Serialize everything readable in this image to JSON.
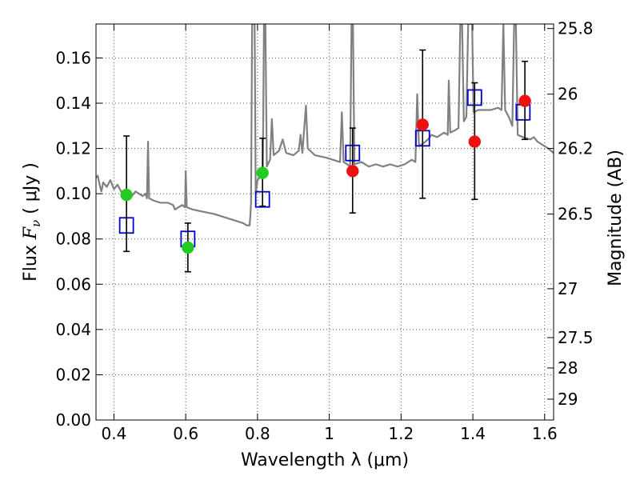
{
  "chart_data": {
    "type": "scatter",
    "xlabel": "Wavelength  λ (μm)",
    "ylabel": {
      "prefix": "Flux  ",
      "symbol": "F",
      "subscript": "ν",
      "suffix": "  ( μJy )"
    },
    "y2label": "Magnitude (AB)",
    "xlim": [
      0.35,
      1.625
    ],
    "ylim": [
      0.0,
      0.175
    ],
    "grid": true,
    "x_ticks": [
      0.4,
      0.6,
      0.8,
      1.0,
      1.2,
      1.4,
      1.6
    ],
    "x_tick_labels": [
      "0.4",
      "0.6",
      "0.8",
      "1",
      "1.2",
      "1.4",
      "1.6"
    ],
    "y_ticks": [
      0.0,
      0.02,
      0.04,
      0.06,
      0.08,
      0.1,
      0.12,
      0.14,
      0.16
    ],
    "y_tick_labels": [
      "0.00",
      "0.02",
      "0.04",
      "0.06",
      "0.08",
      "0.10",
      "0.12",
      "0.14",
      "0.16"
    ],
    "y2_ticks": [
      {
        "label": "25.8",
        "flux": 0.173
      },
      {
        "label": "26",
        "flux": 0.144
      },
      {
        "label": "26.2",
        "flux": 0.12
      },
      {
        "label": "26.5",
        "flux": 0.091
      },
      {
        "label": "27",
        "flux": 0.058
      },
      {
        "label": "27.5",
        "flux": 0.0364
      },
      {
        "label": "28",
        "flux": 0.023
      },
      {
        "label": "29",
        "flux": 0.0092
      }
    ],
    "colors": {
      "sed": "#808080",
      "green": "#22cc22",
      "red": "#ee1111",
      "model": "#0000cc",
      "errorbar": "#000000",
      "grid": "#555555"
    },
    "series": [
      {
        "kind": "observed_green",
        "points": [
          {
            "x": 0.435,
            "y": 0.0995,
            "yerr_low": 0.0745,
            "yerr_high": 0.1255
          },
          {
            "x": 0.606,
            "y": 0.0762,
            "yerr_low": 0.0655,
            "yerr_high": 0.087
          },
          {
            "x": 0.814,
            "y": 0.1092,
            "yerr_low": 0.0945,
            "yerr_high": 0.1245
          }
        ]
      },
      {
        "kind": "observed_red",
        "points": [
          {
            "x": 1.065,
            "y": 0.11,
            "yerr_low": 0.0915,
            "yerr_high": 0.129
          },
          {
            "x": 1.26,
            "y": 0.1305,
            "yerr_low": 0.098,
            "yerr_high": 0.1635
          },
          {
            "x": 1.405,
            "y": 0.123,
            "yerr_low": 0.0975,
            "yerr_high": 0.149
          },
          {
            "x": 1.545,
            "y": 0.141,
            "yerr_low": 0.124,
            "yerr_high": 0.1585
          }
        ]
      },
      {
        "kind": "model_squares",
        "points": [
          {
            "x": 0.435,
            "y": 0.086
          },
          {
            "x": 0.606,
            "y": 0.08
          },
          {
            "x": 0.814,
            "y": 0.0975
          },
          {
            "x": 1.065,
            "y": 0.118
          },
          {
            "x": 1.26,
            "y": 0.1245
          },
          {
            "x": 1.405,
            "y": 0.1425
          },
          {
            "x": 1.54,
            "y": 0.136
          }
        ]
      }
    ],
    "sed_curve": [
      [
        0.35,
        0.107
      ],
      [
        0.355,
        0.108
      ],
      [
        0.36,
        0.104
      ],
      [
        0.365,
        0.101
      ],
      [
        0.37,
        0.105
      ],
      [
        0.38,
        0.103
      ],
      [
        0.39,
        0.106
      ],
      [
        0.4,
        0.102
      ],
      [
        0.41,
        0.104
      ],
      [
        0.42,
        0.101
      ],
      [
        0.43,
        0.1
      ],
      [
        0.44,
        0.101
      ],
      [
        0.45,
        0.099
      ],
      [
        0.46,
        0.101
      ],
      [
        0.47,
        0.1
      ],
      [
        0.48,
        0.099
      ],
      [
        0.488,
        0.1
      ],
      [
        0.492,
        0.098
      ],
      [
        0.495,
        0.123
      ],
      [
        0.498,
        0.098
      ],
      [
        0.51,
        0.097
      ],
      [
        0.53,
        0.096
      ],
      [
        0.55,
        0.096
      ],
      [
        0.565,
        0.095
      ],
      [
        0.57,
        0.093
      ],
      [
        0.58,
        0.094
      ],
      [
        0.59,
        0.095
      ],
      [
        0.598,
        0.094
      ],
      [
        0.6,
        0.11
      ],
      [
        0.603,
        0.094
      ],
      [
        0.62,
        0.093
      ],
      [
        0.65,
        0.092
      ],
      [
        0.68,
        0.091
      ],
      [
        0.7,
        0.09
      ],
      [
        0.72,
        0.089
      ],
      [
        0.74,
        0.088
      ],
      [
        0.76,
        0.087
      ],
      [
        0.77,
        0.086
      ],
      [
        0.778,
        0.086
      ],
      [
        0.78,
        0.09
      ],
      [
        0.782,
        0.096
      ],
      [
        0.785,
        0.175
      ],
      [
        0.792,
        0.175
      ],
      [
        0.795,
        0.1
      ],
      [
        0.8,
        0.106
      ],
      [
        0.81,
        0.108
      ],
      [
        0.815,
        0.112
      ],
      [
        0.818,
        0.175
      ],
      [
        0.822,
        0.175
      ],
      [
        0.826,
        0.112
      ],
      [
        0.835,
        0.115
      ],
      [
        0.84,
        0.133
      ],
      [
        0.845,
        0.117
      ],
      [
        0.86,
        0.119
      ],
      [
        0.87,
        0.124
      ],
      [
        0.88,
        0.118
      ],
      [
        0.9,
        0.117
      ],
      [
        0.915,
        0.119
      ],
      [
        0.92,
        0.126
      ],
      [
        0.925,
        0.118
      ],
      [
        0.935,
        0.139
      ],
      [
        0.94,
        0.12
      ],
      [
        0.96,
        0.117
      ],
      [
        0.99,
        0.116
      ],
      [
        1.01,
        0.115
      ],
      [
        1.03,
        0.114
      ],
      [
        1.035,
        0.136
      ],
      [
        1.04,
        0.114
      ],
      [
        1.05,
        0.113
      ],
      [
        1.058,
        0.112
      ],
      [
        1.062,
        0.175
      ],
      [
        1.066,
        0.175
      ],
      [
        1.07,
        0.113
      ],
      [
        1.09,
        0.114
      ],
      [
        1.11,
        0.112
      ],
      [
        1.13,
        0.113
      ],
      [
        1.15,
        0.112
      ],
      [
        1.17,
        0.113
      ],
      [
        1.19,
        0.112
      ],
      [
        1.21,
        0.113
      ],
      [
        1.23,
        0.115
      ],
      [
        1.24,
        0.114
      ],
      [
        1.245,
        0.144
      ],
      [
        1.25,
        0.121
      ],
      [
        1.26,
        0.122
      ],
      [
        1.275,
        0.124
      ],
      [
        1.285,
        0.126
      ],
      [
        1.3,
        0.125
      ],
      [
        1.32,
        0.127
      ],
      [
        1.33,
        0.126
      ],
      [
        1.333,
        0.15
      ],
      [
        1.337,
        0.127
      ],
      [
        1.35,
        0.128
      ],
      [
        1.36,
        0.129
      ],
      [
        1.365,
        0.175
      ],
      [
        1.37,
        0.175
      ],
      [
        1.375,
        0.132
      ],
      [
        1.382,
        0.134
      ],
      [
        1.387,
        0.175
      ],
      [
        1.398,
        0.175
      ],
      [
        1.402,
        0.136
      ],
      [
        1.415,
        0.137
      ],
      [
        1.43,
        0.137
      ],
      [
        1.45,
        0.137
      ],
      [
        1.47,
        0.138
      ],
      [
        1.48,
        0.137
      ],
      [
        1.485,
        0.175
      ],
      [
        1.49,
        0.137
      ],
      [
        1.5,
        0.134
      ],
      [
        1.51,
        0.13
      ],
      [
        1.515,
        0.175
      ],
      [
        1.52,
        0.175
      ],
      [
        1.525,
        0.126
      ],
      [
        1.54,
        0.125
      ],
      [
        1.56,
        0.124
      ],
      [
        1.57,
        0.125
      ],
      [
        1.58,
        0.123
      ],
      [
        1.59,
        0.122
      ],
      [
        1.6,
        0.121
      ],
      [
        1.61,
        0.12
      ],
      [
        1.625,
        0.118
      ]
    ]
  }
}
